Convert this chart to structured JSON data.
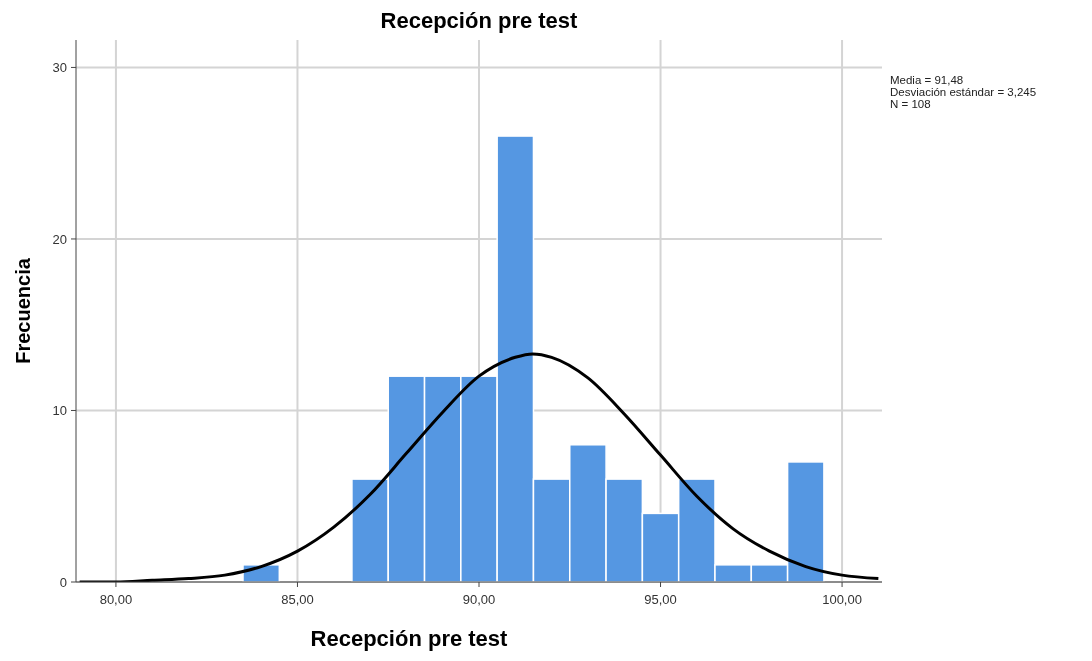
{
  "chart_data": {
    "type": "histogram",
    "title": "Recepción pre test",
    "xlabel": "Recepción pre test",
    "ylabel": "Frecuencia",
    "bins": [
      83.5,
      84.5,
      85.5,
      86.5,
      87.5,
      88.5,
      89.5,
      90.5,
      91.5,
      92.5,
      93.5,
      94.5,
      95.5,
      96.5,
      97.5,
      98.5,
      99.5
    ],
    "values": [
      1,
      0,
      0,
      6,
      12,
      12,
      12,
      26,
      6,
      8,
      6,
      4,
      6,
      1,
      1,
      7
    ],
    "color": "#5597e2",
    "series": [
      {
        "type": "line",
        "color": "#000000",
        "x": [
          79,
          80,
          81,
          82,
          83,
          84,
          85,
          86,
          87,
          88,
          89,
          90,
          91,
          91.48,
          92,
          93,
          94,
          95,
          96,
          97,
          98,
          99,
          100,
          101
        ],
        "values": [
          0.0,
          0.0,
          0.1,
          0.2,
          0.4,
          0.9,
          1.8,
          3.2,
          5.1,
          7.5,
          9.9,
          12.0,
          13.1,
          13.3,
          13.1,
          11.9,
          9.8,
          7.4,
          5.0,
          3.1,
          1.8,
          0.9,
          0.4,
          0.2
        ]
      }
    ],
    "xlim": [
      78.9,
      101.1
    ],
    "xticks": [
      {
        "value": 80,
        "label": "80,00"
      },
      {
        "value": 85,
        "label": "85,00"
      },
      {
        "value": 90,
        "label": "90,00"
      },
      {
        "value": 95,
        "label": "95,00"
      },
      {
        "value": 100,
        "label": "100,00"
      }
    ],
    "ylim": [
      0,
      31.6
    ],
    "yticks": [
      0,
      10,
      20,
      30
    ],
    "grid": true,
    "annotations": [
      "Media = 91,48",
      "Desviación estándar = 3,245",
      "N = 108"
    ]
  }
}
